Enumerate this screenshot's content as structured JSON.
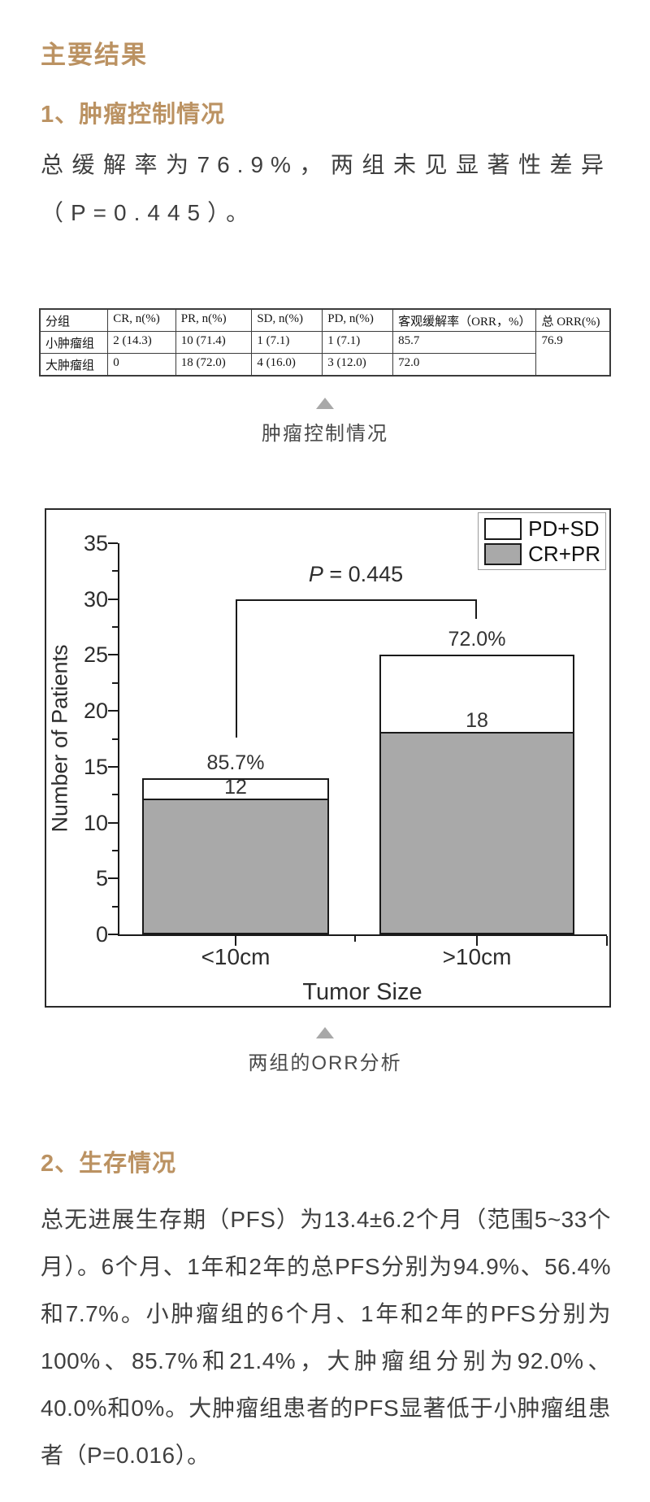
{
  "page": {
    "title": "主要结果"
  },
  "section1": {
    "heading": "1、肿瘤控制情况",
    "paragraph": "总缓解率为76.9%，两组未见显著性差异（P=0.445）。"
  },
  "table": {
    "headers": [
      "分组",
      "CR, n(%)",
      "PR, n(%)",
      "SD, n(%)",
      "PD, n(%)",
      "客观缓解率（ORR，%）",
      "总 ORR(%)"
    ],
    "rows": [
      [
        "小肿瘤组",
        "2 (14.3)",
        "10 (71.4)",
        "1 (7.1)",
        "1 (7.1)",
        "85.7"
      ],
      [
        "大肿瘤组",
        "0",
        "18 (72.0)",
        "4 (16.0)",
        "3 (12.0)",
        "72.0"
      ]
    ],
    "merged_total_orr": "76.9"
  },
  "figure1": {
    "caption": "肿瘤控制情况"
  },
  "figure2": {
    "caption": "两组的ORR分析"
  },
  "section2": {
    "heading": "2、生存情况",
    "paragraph": "总无进展生存期（PFS）为13.4±6.2个月（范围5~33个月）。6个月、1年和2年的总PFS分别为94.9%、56.4%和7.7%。小肿瘤组的6个月、1年和2年的PFS分别为100%、85.7%和21.4%，大肿瘤组分别为92.0%、40.0%和0%。大肿瘤组患者的PFS显著低于小肿瘤组患者（P=0.016）。"
  },
  "chart_data": {
    "type": "bar",
    "stacked": true,
    "categories": [
      "<10cm",
      ">10cm"
    ],
    "series": [
      {
        "name": "CR+PR",
        "values": [
          12,
          18
        ],
        "color": "#a9a9a9"
      },
      {
        "name": "PD+SD",
        "values": [
          2,
          7
        ],
        "color": "#ffffff"
      }
    ],
    "totals": [
      14,
      25
    ],
    "count_labels": [
      "12",
      "18"
    ],
    "pct_labels": [
      "85.7%",
      "72.0%"
    ],
    "annotation": "P = 0.445",
    "xlabel": "Tumor Size",
    "ylabel": "Number of Patients",
    "ylim": [
      0,
      35
    ],
    "ytick_step": 5,
    "ytick_minor_step": 2.5,
    "legend": [
      "PD+SD",
      "CR+PR"
    ],
    "legend_position": "top-right",
    "grid": false
  },
  "colors": {
    "accent": "#bb9262",
    "bar_gray": "#a9a9a9",
    "axis": "#1a1a1a"
  }
}
